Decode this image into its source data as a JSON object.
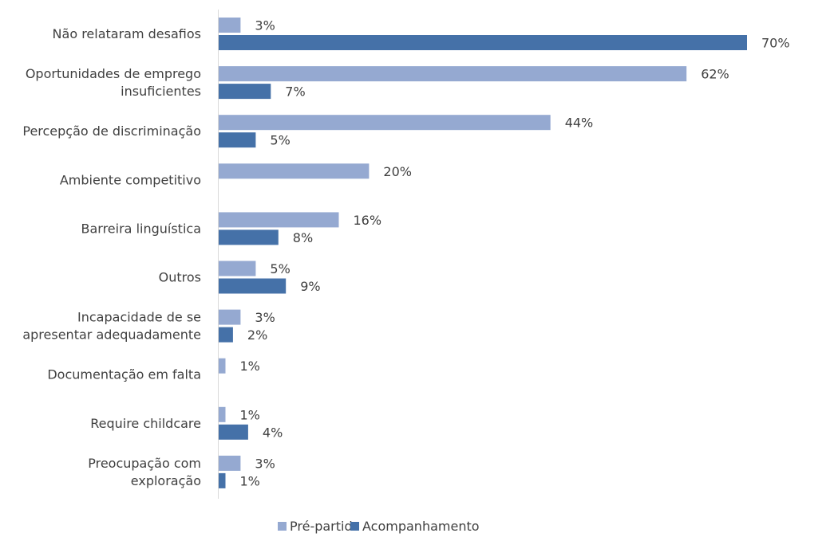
{
  "chart_data": {
    "type": "bar",
    "orientation": "horizontal",
    "categories": [
      [
        "Não relataram desafios"
      ],
      [
        "Oportunidades de emprego",
        "insuficientes"
      ],
      [
        "Percepção de discriminação"
      ],
      [
        "Ambiente competitivo"
      ],
      [
        "Barreira linguística"
      ],
      [
        "Outros"
      ],
      [
        "Incapacidade de se",
        "apresentar adequadamente"
      ],
      [
        "Documentação em falta"
      ],
      [
        "Require childcare"
      ],
      [
        "Preocupação com",
        "exploração"
      ]
    ],
    "series": [
      {
        "name": "Pré-partida",
        "color": "#95a9d1",
        "values": [
          3,
          62,
          44,
          20,
          16,
          5,
          3,
          1,
          1,
          3
        ],
        "labels": [
          "3%",
          "62%",
          "44%",
          "20%",
          "16%",
          "5%",
          "3%",
          "1%",
          "1%",
          "3%"
        ]
      },
      {
        "name": "Acompanhamento",
        "color": "#4571a8",
        "values": [
          70,
          7,
          5,
          null,
          8,
          9,
          2,
          null,
          4,
          1
        ],
        "labels": [
          "70%",
          "7%",
          "5%",
          null,
          "8%",
          "9%",
          "2%",
          null,
          "4%",
          "1%"
        ]
      }
    ],
    "xlim": [
      0,
      70
    ],
    "grid": false,
    "legend_position": "bottom-center"
  }
}
